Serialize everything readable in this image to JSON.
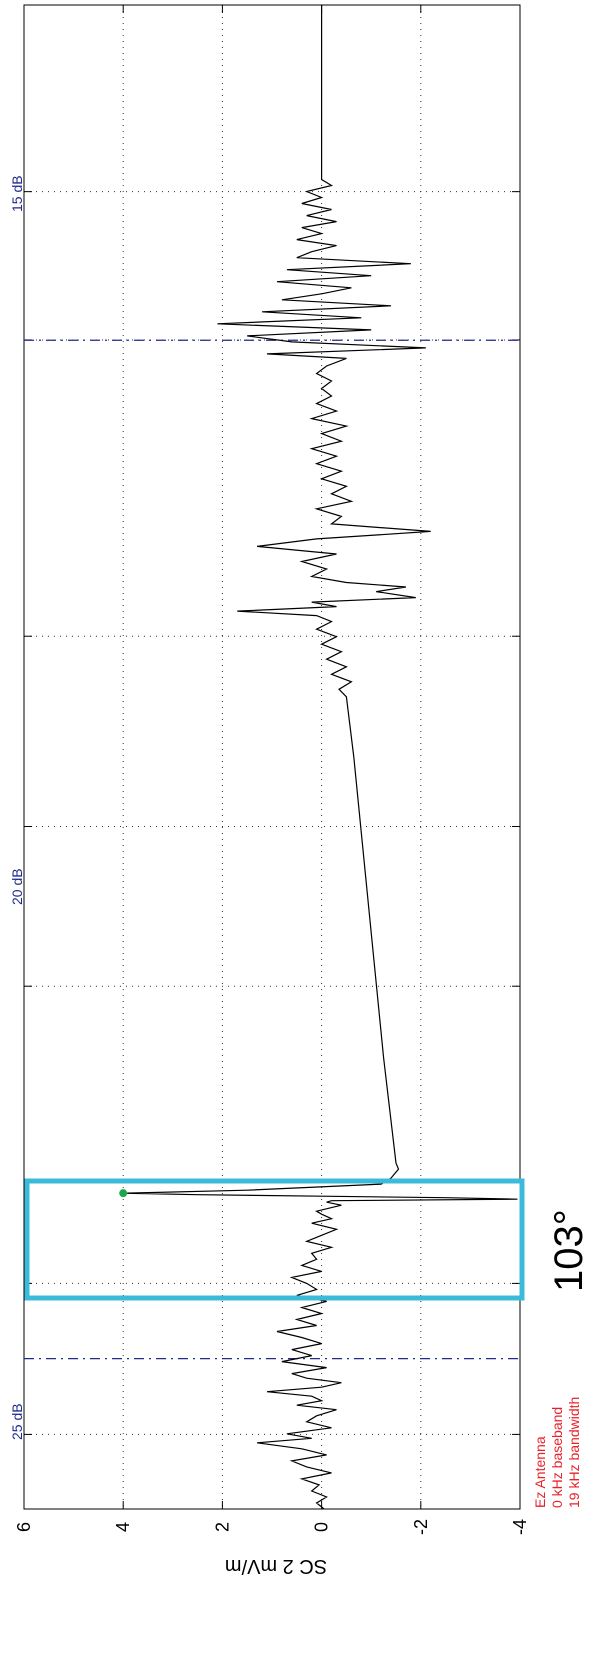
{
  "chart_data": {
    "type": "line",
    "orientation": "rotated-90-ccw",
    "ylabel": "SC 2 mV/m",
    "ylim": [
      -4,
      6
    ],
    "yticks": [
      6,
      4,
      2,
      0,
      -2,
      -4
    ],
    "grid": "dotted",
    "series": [
      {
        "color": "#000000",
        "points": [
          [
            0.0,
            -0.05
          ],
          [
            0.004,
            0.1
          ],
          [
            0.008,
            -0.1
          ],
          [
            0.012,
            0.2
          ],
          [
            0.016,
            0.05
          ],
          [
            0.02,
            0.4
          ],
          [
            0.024,
            -0.2
          ],
          [
            0.028,
            0.3
          ],
          [
            0.032,
            0.6
          ],
          [
            0.036,
            -0.1
          ],
          [
            0.04,
            0.4
          ],
          [
            0.044,
            1.3
          ],
          [
            0.047,
            0.2
          ],
          [
            0.05,
            0.7
          ],
          [
            0.054,
            -0.2
          ],
          [
            0.058,
            0.3
          ],
          [
            0.062,
            0.1
          ],
          [
            0.066,
            -0.3
          ],
          [
            0.069,
            0.5
          ],
          [
            0.072,
            0.0
          ],
          [
            0.075,
            0.2
          ],
          [
            0.078,
            1.1
          ],
          [
            0.081,
            0.0
          ],
          [
            0.084,
            -0.4
          ],
          [
            0.087,
            0.3
          ],
          [
            0.09,
            0.6
          ],
          [
            0.094,
            -0.1
          ],
          [
            0.098,
            0.8
          ],
          [
            0.102,
            0.2
          ],
          [
            0.106,
            0.6
          ],
          [
            0.11,
            0.0
          ],
          [
            0.114,
            0.4
          ],
          [
            0.118,
            0.9
          ],
          [
            0.122,
            0.1
          ],
          [
            0.126,
            0.5
          ],
          [
            0.13,
            0.0
          ],
          [
            0.134,
            0.4
          ],
          [
            0.138,
            -0.1
          ],
          [
            0.142,
            0.5
          ],
          [
            0.146,
            0.1
          ],
          [
            0.15,
            0.3
          ],
          [
            0.154,
            0.6
          ],
          [
            0.158,
            0.0
          ],
          [
            0.162,
            0.4
          ],
          [
            0.166,
            0.1
          ],
          [
            0.17,
            0.2
          ],
          [
            0.174,
            -0.2
          ],
          [
            0.178,
            0.3
          ],
          [
            0.182,
            0.0
          ],
          [
            0.186,
            -0.3
          ],
          [
            0.19,
            0.2
          ],
          [
            0.193,
            -0.2
          ],
          [
            0.196,
            0.0
          ],
          [
            0.198,
            0.1
          ],
          [
            0.202,
            -0.4
          ],
          [
            0.204,
            -0.1
          ],
          [
            0.205,
            -0.2
          ],
          [
            0.206,
            -3.95
          ],
          [
            0.207,
            -2.5
          ],
          [
            0.208,
            0.0
          ],
          [
            0.209,
            2.5
          ],
          [
            0.21,
            4.0
          ],
          [
            0.212,
            1.5
          ],
          [
            0.216,
            -1.2
          ],
          [
            0.22,
            -1.4
          ],
          [
            0.226,
            -1.55
          ],
          [
            0.23,
            -1.5
          ],
          [
            0.3,
            -1.25
          ],
          [
            0.4,
            -0.95
          ],
          [
            0.5,
            -0.65
          ],
          [
            0.54,
            -0.5
          ],
          [
            0.545,
            -0.35
          ],
          [
            0.55,
            -0.6
          ],
          [
            0.555,
            -0.2
          ],
          [
            0.56,
            -0.5
          ],
          [
            0.565,
            -0.1
          ],
          [
            0.57,
            -0.4
          ],
          [
            0.575,
            0.0
          ],
          [
            0.58,
            -0.3
          ],
          [
            0.585,
            0.1
          ],
          [
            0.59,
            -0.2
          ],
          [
            0.594,
            0.1
          ],
          [
            0.597,
            1.7
          ],
          [
            0.6,
            -0.3
          ],
          [
            0.603,
            0.2
          ],
          [
            0.606,
            -1.9
          ],
          [
            0.61,
            -1.1
          ],
          [
            0.613,
            -1.7
          ],
          [
            0.616,
            -0.5
          ],
          [
            0.62,
            0.2
          ],
          [
            0.625,
            -0.1
          ],
          [
            0.63,
            0.4
          ],
          [
            0.635,
            -0.3
          ],
          [
            0.64,
            1.3
          ],
          [
            0.645,
            0.1
          ],
          [
            0.65,
            -2.2
          ],
          [
            0.655,
            -0.2
          ],
          [
            0.66,
            -0.4
          ],
          [
            0.665,
            0.1
          ],
          [
            0.67,
            -0.6
          ],
          [
            0.675,
            -0.2
          ],
          [
            0.68,
            -0.5
          ],
          [
            0.685,
            0.0
          ],
          [
            0.69,
            -0.4
          ],
          [
            0.695,
            0.1
          ],
          [
            0.7,
            -0.3
          ],
          [
            0.705,
            0.2
          ],
          [
            0.71,
            -0.4
          ],
          [
            0.715,
            0.0
          ],
          [
            0.72,
            -0.5
          ],
          [
            0.725,
            0.2
          ],
          [
            0.73,
            -0.3
          ],
          [
            0.735,
            0.1
          ],
          [
            0.74,
            -0.2
          ],
          [
            0.745,
            0.0
          ],
          [
            0.75,
            -0.2
          ],
          [
            0.755,
            0.1
          ],
          [
            0.76,
            -0.1
          ],
          [
            0.765,
            -0.5
          ],
          [
            0.768,
            1.1
          ],
          [
            0.772,
            -2.1
          ],
          [
            0.776,
            0.6
          ],
          [
            0.78,
            1.5
          ],
          [
            0.784,
            -1.0
          ],
          [
            0.788,
            2.1
          ],
          [
            0.792,
            -0.8
          ],
          [
            0.796,
            1.2
          ],
          [
            0.8,
            -1.4
          ],
          [
            0.804,
            0.8
          ],
          [
            0.808,
            0.0
          ],
          [
            0.812,
            -0.6
          ],
          [
            0.816,
            0.9
          ],
          [
            0.82,
            -1.0
          ],
          [
            0.824,
            0.7
          ],
          [
            0.828,
            -1.8
          ],
          [
            0.832,
            0.5
          ],
          [
            0.836,
            0.2
          ],
          [
            0.84,
            -0.3
          ],
          [
            0.844,
            0.5
          ],
          [
            0.848,
            0.0
          ],
          [
            0.852,
            0.4
          ],
          [
            0.856,
            -0.3
          ],
          [
            0.86,
            0.3
          ],
          [
            0.864,
            -0.2
          ],
          [
            0.868,
            0.4
          ],
          [
            0.872,
            0.0
          ],
          [
            0.876,
            0.3
          ],
          [
            0.88,
            -0.2
          ],
          [
            0.884,
            0.0
          ],
          [
            0.888,
            0.0
          ],
          [
            1.0,
            0.0
          ]
        ]
      }
    ],
    "annotations": {
      "band_labels": [
        "25 dB",
        "20 dB",
        "15 dB"
      ],
      "highlight_label": "103°",
      "antenna_info": [
        "Ez Antenna",
        "0 kHz baseband",
        "19 kHz bandwidth"
      ]
    },
    "colors": {
      "trace": "#000000",
      "highlight_box": "#3bbbd9",
      "marker": "#1aa84a",
      "band_lines": "#1f2a8c",
      "antenna_text": "#e8222a"
    }
  }
}
